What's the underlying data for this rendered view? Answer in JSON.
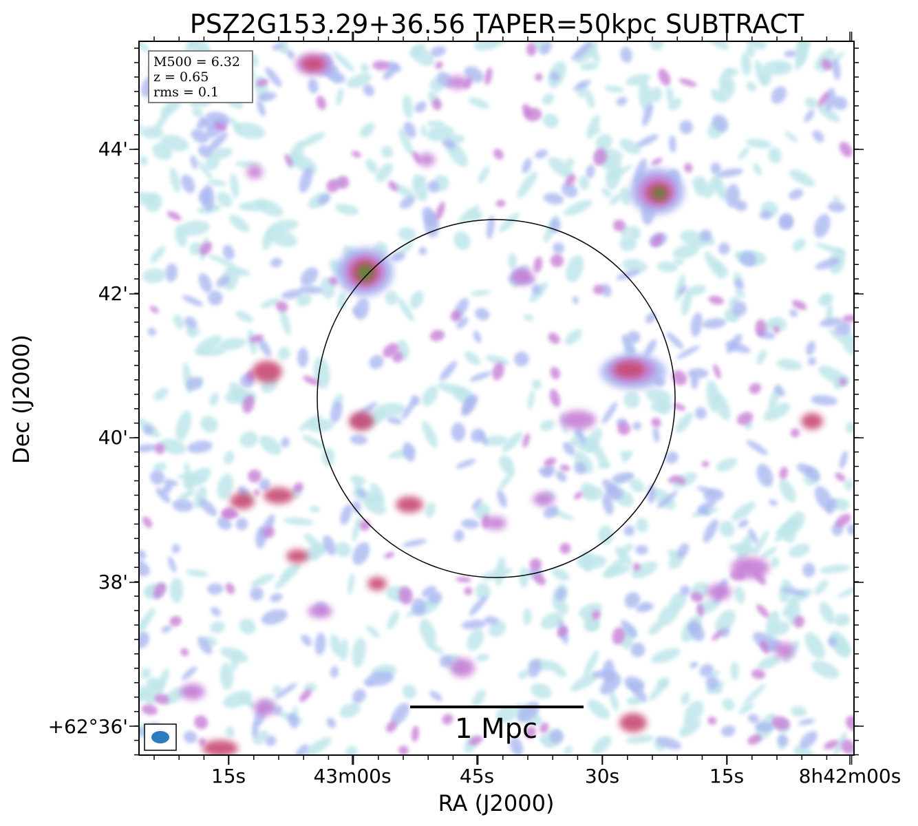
{
  "figure": {
    "title": "PSZ2G153.29+36.56 TAPER=50kpc SUBTRACT",
    "xlabel": "RA (J2000)",
    "ylabel": "Dec (J2000)",
    "ra_ticks": [
      "15s",
      "43m00s",
      "45s",
      "30s",
      "15s",
      "8h42m00s"
    ],
    "dec_ticks": [
      "44'",
      "42'",
      "40'",
      "38'",
      "+62°36'"
    ],
    "info_box": {
      "line1": "M500 = 6.32",
      "line2": "z = 0.65",
      "line3": "rms = 0.1"
    },
    "scale_bar_label": "1 Mpc",
    "colors": {
      "faint": "#bfe6ea",
      "low": "#aab8f0",
      "mid": "#c77fd6",
      "high": "#c84a72",
      "peak": "#5d8a35",
      "beam": "#2a7bbf"
    }
  }
}
